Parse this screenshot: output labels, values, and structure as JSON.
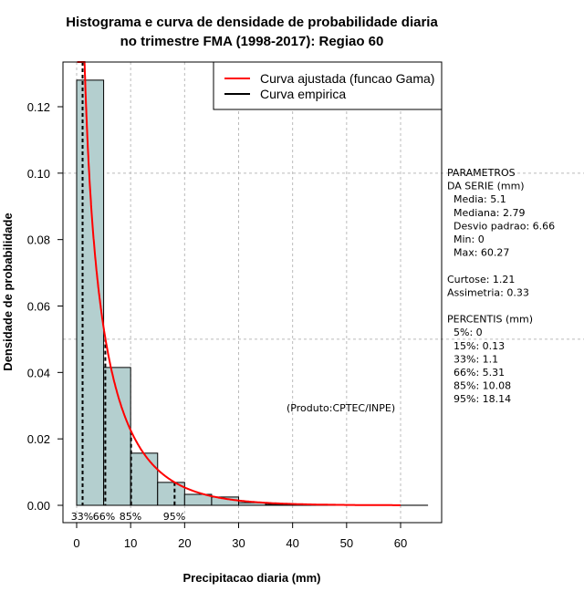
{
  "chart_data": {
    "type": "bar",
    "title_line1": "Histograma e curva de densidade de probabilidade diaria",
    "title_line2": "no trimestre FMA (1998-2017): Regiao 60",
    "xlabel": "Precipitacao diaria (mm)",
    "ylabel": "Densidade de probabilidade",
    "xlim": [
      -3,
      67
    ],
    "ylim": [
      -0.005,
      0.133
    ],
    "x_ticks": [
      "0",
      "10",
      "20",
      "30",
      "40",
      "50",
      "60"
    ],
    "x_tick_values": [
      0,
      10,
      20,
      30,
      40,
      50,
      60
    ],
    "y_ticks": [
      "0.00",
      "0.02",
      "0.04",
      "0.06",
      "0.08",
      "0.10",
      "0.12"
    ],
    "y_tick_values": [
      0,
      0.02,
      0.04,
      0.06,
      0.08,
      0.1,
      0.12
    ],
    "grid": true,
    "bin_width": 5,
    "bin_starts": [
      0,
      5,
      10,
      15,
      20,
      25,
      30,
      35,
      40,
      45,
      50,
      55,
      60
    ],
    "values": [
      0.128,
      0.0415,
      0.0157,
      0.0069,
      0.0033,
      0.0025,
      0.0008,
      0.0003,
      0.0001,
      5e-05,
      3e-05,
      2e-05,
      2e-05
    ],
    "bar_color": "#b4cfcf",
    "gamma_fit": {
      "mean": 5.1,
      "sd": 6.66,
      "x_range": [
        0.1,
        60
      ],
      "color": "#ff0000"
    },
    "empirical_max": 65,
    "percentile_marks": [
      {
        "label": "33%",
        "value": 1.1
      },
      {
        "label": "66%",
        "value": 5.31
      },
      {
        "label": "85%",
        "value": 10.08
      },
      {
        "label": "95%",
        "value": 18.14
      }
    ],
    "legend": {
      "position": "top-right",
      "entries": [
        {
          "label": "Curva ajustada (funcao Gama)",
          "color": "#ff0000"
        },
        {
          "label": "Curva empirica",
          "color": "#000000"
        }
      ]
    },
    "annotation": "(Produto:CPTEC/INPE)"
  },
  "side_panel": {
    "lines": [
      "PARAMETROS",
      "DA SERIE (mm)",
      "  Media: 5.1",
      "  Mediana: 2.79",
      "  Desvio padrao: 6.66",
      "  Min: 0",
      "  Max: 60.27",
      "",
      "Curtose: 1.21",
      "Assimetria: 0.33",
      "",
      "PERCENTIS (mm)",
      "  5%: 0",
      "  15%: 0.13",
      "  33%: 1.1",
      "  66%: 5.31",
      "  85%: 10.08",
      "  95%: 18.14"
    ]
  }
}
